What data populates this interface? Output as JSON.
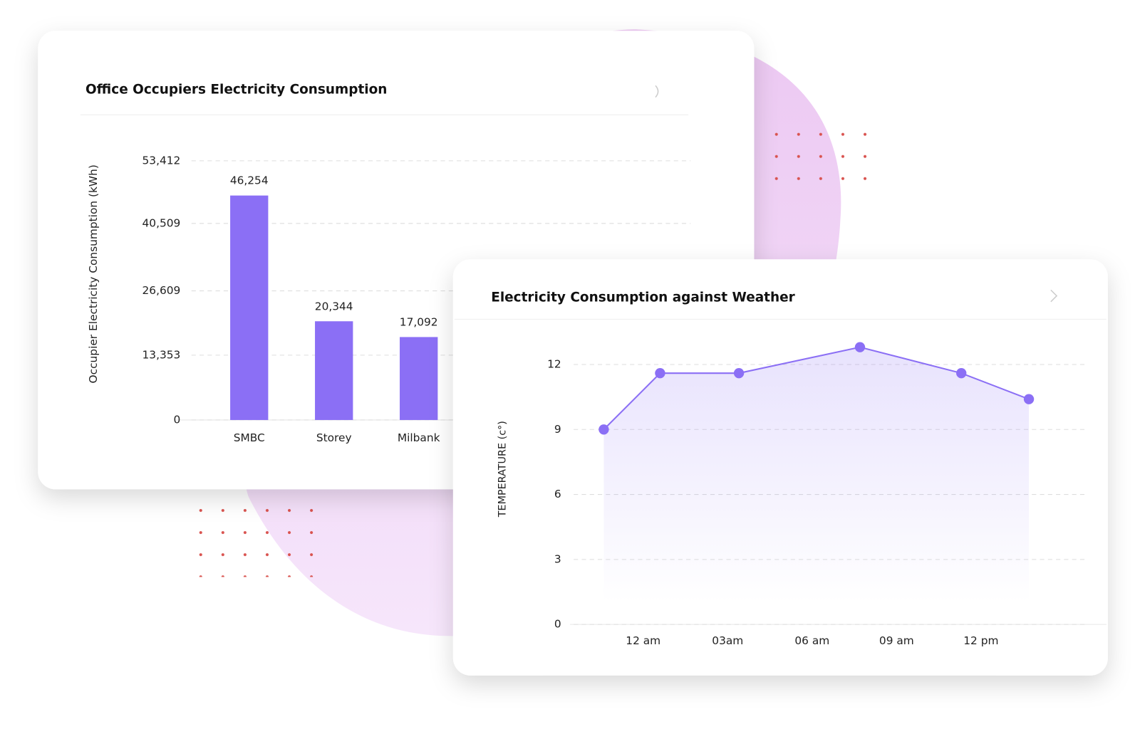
{
  "chart_data": [
    {
      "type": "bar",
      "title": "Office Occupiers Electricity Consumption",
      "y_label": "Occupier Electricity Consumption (kWh)",
      "categories": [
        "SMBC",
        "Storey",
        "Milbank"
      ],
      "values": [
        46254,
        20344,
        17092
      ],
      "value_labels": [
        "46,254",
        "20,344",
        "17,092"
      ],
      "color": "#8b6ff5",
      "ylim": [
        0,
        53412
      ],
      "yticks": [
        0,
        {
          "value": 13353,
          "label": "13,353"
        },
        {
          "value": 26609,
          "label": "26,609"
        },
        {
          "value": 40509,
          "label": "40,509"
        },
        {
          "value": 53412,
          "label": "53,412"
        }
      ],
      "grid": true
    },
    {
      "type": "line",
      "title": "Electricity Consumption against Weather",
      "y_label": "TEMPERATURE (c°)",
      "x": [
        -1.4,
        0.6,
        3.4,
        7.7,
        11.3,
        13.7
      ],
      "series": [
        {
          "name": "Temperature",
          "color": "#8b6ff5",
          "values": [
            9.0,
            11.6,
            11.6,
            12.8,
            11.6,
            10.4
          ]
        }
      ],
      "xlim": [
        -2.6,
        15.7
      ],
      "xticks": [
        {
          "value": 0,
          "label": "12 am"
        },
        {
          "value": 3,
          "label": "03am"
        },
        {
          "value": 6,
          "label": "06 am"
        },
        {
          "value": 9,
          "label": "09 am"
        },
        {
          "value": 12,
          "label": "12 pm"
        }
      ],
      "ylim": [
        0,
        12
      ],
      "yticks": [
        0,
        3,
        6,
        9,
        12
      ],
      "grid": true
    }
  ]
}
